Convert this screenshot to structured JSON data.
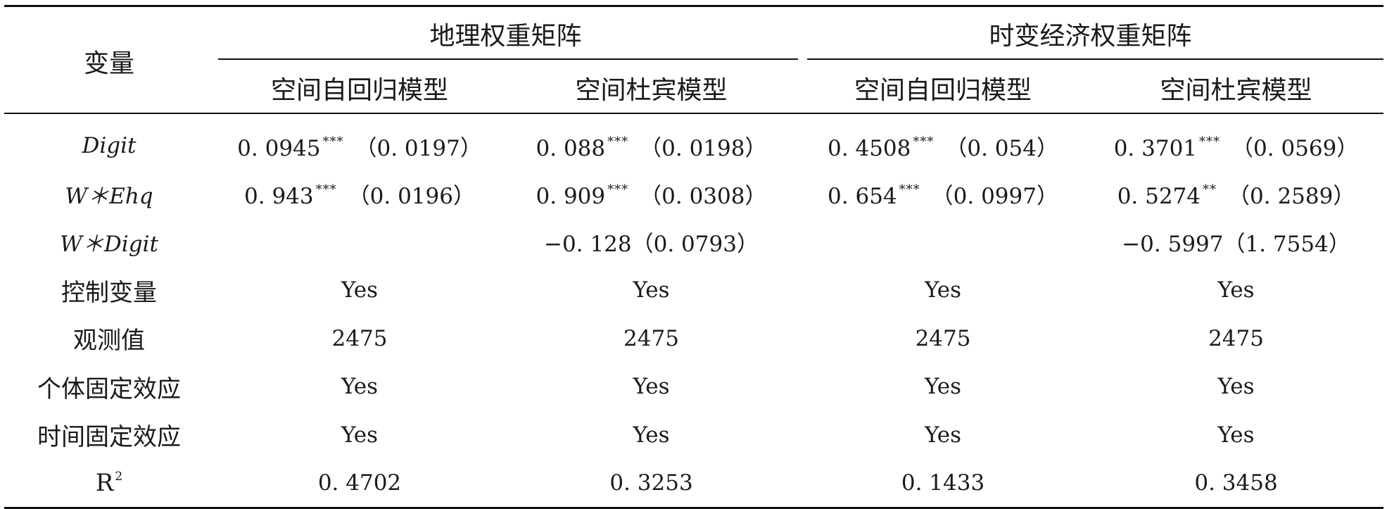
{
  "table": {
    "header": {
      "variable_label": "变量",
      "groups": [
        {
          "label": "地理权重矩阵"
        },
        {
          "label": "时变经济权重矩阵"
        }
      ],
      "models": [
        "空间自回归模型",
        "空间杜宾模型",
        "空间自回归模型",
        "空间杜宾模型"
      ]
    },
    "rows": [
      {
        "label": "Digit",
        "cells": [
          {
            "value": "0. 0945",
            "stars": "***",
            "se": "（0. 0197）"
          },
          {
            "value": "0. 088",
            "stars": "***",
            "se": "（0. 0198）"
          },
          {
            "value": "0. 4508",
            "stars": "***",
            "se": "（0. 054）"
          },
          {
            "value": "0. 3701",
            "stars": "***",
            "se": "（0. 0569）"
          }
        ]
      },
      {
        "label": "W＊Ehq",
        "cells": [
          {
            "value": "0. 943",
            "stars": "***",
            "se": "（0. 0196）"
          },
          {
            "value": "0. 909",
            "stars": "***",
            "se": "（0. 0308）"
          },
          {
            "value": "0. 654",
            "stars": "***",
            "se": "（0. 0997）"
          },
          {
            "value": "0. 5274",
            "stars": "**",
            "se": "（0. 2589）"
          }
        ]
      },
      {
        "label": "W＊Digit",
        "cells": [
          {
            "text": ""
          },
          {
            "text": "−0. 128（0. 0793）"
          },
          {
            "text": ""
          },
          {
            "text": "−0. 5997（1. 7554）"
          }
        ]
      },
      {
        "label": "控制变量",
        "cells": [
          {
            "text": "Yes"
          },
          {
            "text": "Yes"
          },
          {
            "text": "Yes"
          },
          {
            "text": "Yes"
          }
        ]
      },
      {
        "label": "观测值",
        "cells": [
          {
            "text": "2475"
          },
          {
            "text": "2475"
          },
          {
            "text": "2475"
          },
          {
            "text": "2475"
          }
        ]
      },
      {
        "label": "个体固定效应",
        "cells": [
          {
            "text": "Yes"
          },
          {
            "text": "Yes"
          },
          {
            "text": "Yes"
          },
          {
            "text": "Yes"
          }
        ]
      },
      {
        "label": "时间固定效应",
        "cells": [
          {
            "text": "Yes"
          },
          {
            "text": "Yes"
          },
          {
            "text": "Yes"
          },
          {
            "text": "Yes"
          }
        ]
      },
      {
        "label": "R",
        "label_sup": "2",
        "cells": [
          {
            "text": "0. 4702"
          },
          {
            "text": "0. 3253"
          },
          {
            "text": "0. 1433"
          },
          {
            "text": "0. 3458"
          }
        ]
      }
    ]
  }
}
